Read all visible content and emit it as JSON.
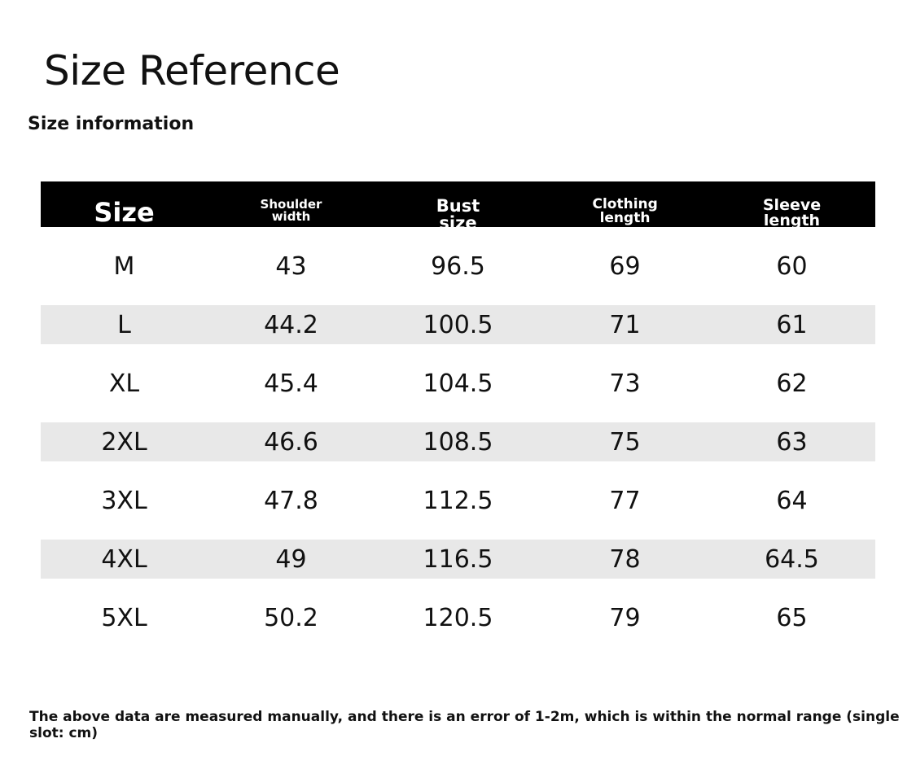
{
  "title": "Size Reference",
  "subtitle": "Size information",
  "table": {
    "headers": [
      "Size",
      "Shoulder width",
      "Bust size",
      "Clothing length",
      "Sleeve length"
    ],
    "rows": [
      [
        "M",
        "43",
        "96.5",
        "69",
        "60"
      ],
      [
        "L",
        "44.2",
        "100.5",
        "71",
        "61"
      ],
      [
        "XL",
        "45.4",
        "104.5",
        "73",
        "62"
      ],
      [
        "2XL",
        "46.6",
        "108.5",
        "75",
        "63"
      ],
      [
        "3XL",
        "47.8",
        "112.5",
        "77",
        "64"
      ],
      [
        "4XL",
        "49",
        "116.5",
        "78",
        "64.5"
      ],
      [
        "5XL",
        "50.2",
        "120.5",
        "79",
        "65"
      ]
    ]
  },
  "note": "The above data are measured manually, and there is an error of 1-2m, which is within the normal range (single slot: cm)"
}
